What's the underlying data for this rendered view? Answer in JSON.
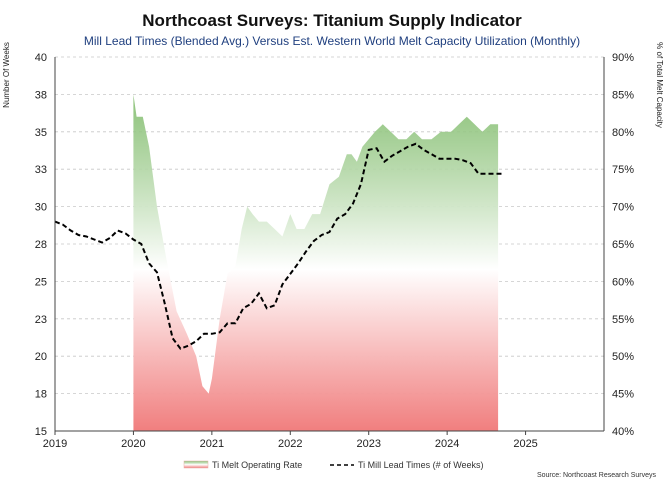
{
  "chart_data": {
    "type": "line",
    "title": "Northcoast Surveys: Titanium Supply Indicator",
    "subtitle": "Mill Lead Times (Blended Avg.) Versus Est. Western World Melt Capacity Utilization (Monthly)",
    "ylabel_left": "Number Of Weeks",
    "ylabel_right": "% of Total Melt Capacity",
    "source": "Source: Northcoast Research Surveys",
    "x_ticks": [
      "2019",
      "2020",
      "2021",
      "2022",
      "2023",
      "2024",
      "2025"
    ],
    "xlim": [
      2019.0,
      2026.0
    ],
    "y_left": {
      "lim": [
        15,
        40
      ],
      "ticks": [
        15,
        18,
        20,
        23,
        25,
        28,
        30,
        33,
        35,
        38,
        40
      ]
    },
    "y_right": {
      "lim": [
        40,
        90
      ],
      "ticks": [
        "40%",
        "45%",
        "50%",
        "55%",
        "60%",
        "65%",
        "70%",
        "75%",
        "80%",
        "85%",
        "90%"
      ],
      "values": [
        40,
        45,
        50,
        55,
        60,
        65,
        70,
        75,
        80,
        85,
        90
      ]
    },
    "gridlines": true,
    "colors": {
      "area_top": "#79b863",
      "area_mid": "#ffffff",
      "area_bottom": "#f07878",
      "line": "#000000",
      "grid": "#c8c8c8",
      "axis": "#444444"
    },
    "series": [
      {
        "name": "Ti Melt Operating Rate",
        "axis": "right",
        "style": "area",
        "x": [
          2020.0,
          2020.04,
          2020.12,
          2020.2,
          2020.3,
          2020.42,
          2020.55,
          2020.68,
          2020.8,
          2020.88,
          2020.96,
          2021.0,
          2021.1,
          2021.2,
          2021.3,
          2021.38,
          2021.45,
          2021.52,
          2021.6,
          2021.7,
          2021.8,
          2021.9,
          2022.0,
          2022.08,
          2022.18,
          2022.28,
          2022.38,
          2022.5,
          2022.62,
          2022.72,
          2022.78,
          2022.85,
          2022.92,
          2023.0,
          2023.08,
          2023.18,
          2023.28,
          2023.38,
          2023.48,
          2023.58,
          2023.68,
          2023.8,
          2023.92,
          2024.05,
          2024.15,
          2024.25,
          2024.35,
          2024.45,
          2024.55,
          2024.65
        ],
        "values": [
          85,
          82,
          82,
          78,
          70,
          63,
          56,
          53,
          50,
          46,
          45,
          47,
          55,
          61,
          62,
          67,
          70,
          69,
          68,
          68,
          67,
          66,
          69,
          67,
          67,
          69,
          69,
          73,
          74,
          77,
          77,
          76,
          78,
          79,
          80,
          81,
          80,
          79,
          79,
          80,
          79,
          79,
          80,
          80,
          81,
          82,
          81,
          80,
          81,
          81
        ]
      },
      {
        "name": "Ti Mill Lead Times (# of Weeks)",
        "axis": "left",
        "style": "dashed-line",
        "x": [
          2019.0,
          2019.1,
          2019.2,
          2019.3,
          2019.4,
          2019.5,
          2019.6,
          2019.7,
          2019.8,
          2019.9,
          2020.0,
          2020.1,
          2020.2,
          2020.3,
          2020.4,
          2020.5,
          2020.6,
          2020.7,
          2020.8,
          2020.9,
          2021.0,
          2021.1,
          2021.2,
          2021.3,
          2021.4,
          2021.5,
          2021.6,
          2021.7,
          2021.8,
          2021.9,
          2022.0,
          2022.1,
          2022.2,
          2022.3,
          2022.4,
          2022.5,
          2022.6,
          2022.7,
          2022.8,
          2022.9,
          2023.0,
          2023.1,
          2023.2,
          2023.3,
          2023.4,
          2023.5,
          2023.6,
          2023.7,
          2023.8,
          2023.9,
          2024.0,
          2024.1,
          2024.2,
          2024.3,
          2024.4,
          2024.5,
          2024.6,
          2024.7
        ],
        "values": [
          29.0,
          28.8,
          28.4,
          28.1,
          28.0,
          27.8,
          27.6,
          27.9,
          28.4,
          28.2,
          27.8,
          27.5,
          26.2,
          25.6,
          23.5,
          21.2,
          20.5,
          20.7,
          21.0,
          21.5,
          21.5,
          21.6,
          22.2,
          22.2,
          23.2,
          23.5,
          24.2,
          23.2,
          23.4,
          24.8,
          25.5,
          26.2,
          27.0,
          27.7,
          28.1,
          28.3,
          29.2,
          29.5,
          30.2,
          31.5,
          33.8,
          33.9,
          33.0,
          33.4,
          33.7,
          34.0,
          34.2,
          33.8,
          33.5,
          33.2,
          33.2,
          33.2,
          33.1,
          32.9,
          32.2,
          32.2,
          32.2,
          32.2
        ]
      }
    ]
  }
}
